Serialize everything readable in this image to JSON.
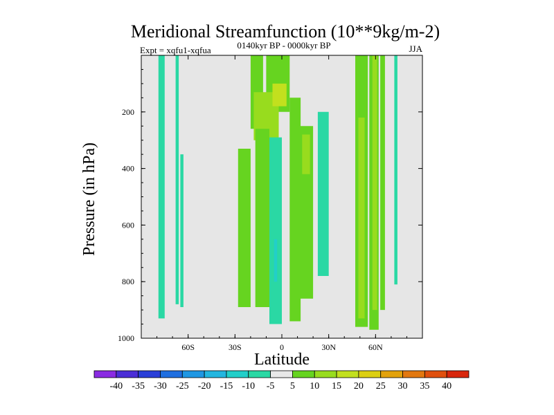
{
  "chart_data": {
    "type": "heatmap",
    "title": "Meridional Streamfunction (10**9kg/m-2)",
    "left_string": "Expt = xqfu1-xqfua",
    "center_string": "0140kyr BP - 0000kyr BP",
    "right_string": "JJA",
    "xlabel": "Latitude",
    "ylabel": "Pressure (in hPa)",
    "xlim": [
      -90,
      90
    ],
    "ylim": [
      1000,
      0
    ],
    "x_ticks": [
      {
        "value": -60,
        "label": "60S"
      },
      {
        "value": -30,
        "label": "30S"
      },
      {
        "value": 0,
        "label": "0"
      },
      {
        "value": 30,
        "label": "30N"
      },
      {
        "value": 60,
        "label": "60N"
      }
    ],
    "y_ticks": [
      {
        "value": 200,
        "label": "200"
      },
      {
        "value": 400,
        "label": "400"
      },
      {
        "value": 600,
        "label": "600"
      },
      {
        "value": 800,
        "label": "800"
      },
      {
        "value": 1000,
        "label": "1000"
      }
    ],
    "missing_color": "#e6e6e6",
    "colorbar": {
      "levels": [
        -40,
        -35,
        -30,
        -25,
        -20,
        -15,
        -10,
        -5,
        5,
        10,
        15,
        20,
        25,
        30,
        35,
        40
      ],
      "labels": [
        "-40",
        "-35",
        "-30",
        "-25",
        "-20",
        "-15",
        "-10",
        "-5",
        "5",
        "10",
        "15",
        "20",
        "25",
        "30",
        "35",
        "40"
      ],
      "colors": [
        "#8a2be2",
        "#4b2ed6",
        "#2a3fd8",
        "#1f6fe0",
        "#1f97e3",
        "#23b6e0",
        "#22cfc9",
        "#2ad8a4",
        "#e8e8e8",
        "#66d420",
        "#98dc1e",
        "#c2e01e",
        "#dccf12",
        "#e2a20c",
        "#e27810",
        "#e0500e",
        "#d8260c"
      ]
    },
    "regions": [
      {
        "x": [
          -79,
          -75,
          -75,
          -79
        ],
        "y": [
          0,
          0,
          930,
          930
        ],
        "value": -7
      },
      {
        "x": [
          -68,
          -66,
          -66,
          -68
        ],
        "y": [
          0,
          0,
          880,
          880
        ],
        "value": -7
      },
      {
        "x": [
          -65,
          -63,
          -63,
          -65
        ],
        "y": [
          350,
          350,
          890,
          890
        ],
        "value": -7
      },
      {
        "x": [
          -20,
          -12,
          -12,
          -20
        ],
        "y": [
          0,
          0,
          260,
          260
        ],
        "value": 7
      },
      {
        "x": [
          -10,
          5,
          5,
          -10
        ],
        "y": [
          0,
          0,
          200,
          200
        ],
        "value": 7
      },
      {
        "x": [
          -18,
          -2,
          -2,
          -18
        ],
        "y": [
          130,
          130,
          300,
          300
        ],
        "value": 12
      },
      {
        "x": [
          -6,
          3,
          3,
          -6
        ],
        "y": [
          100,
          100,
          180,
          180
        ],
        "value": 17
      },
      {
        "x": [
          -28,
          -20,
          -20,
          -28
        ],
        "y": [
          330,
          330,
          890,
          890
        ],
        "value": 7
      },
      {
        "x": [
          -17,
          -8,
          -8,
          -17
        ],
        "y": [
          260,
          260,
          890,
          890
        ],
        "value": 7
      },
      {
        "x": [
          -8,
          0,
          0,
          -8
        ],
        "y": [
          290,
          290,
          950,
          950
        ],
        "value": -7
      },
      {
        "x": [
          -5,
          -3,
          -3,
          -5
        ],
        "y": [
          650,
          650,
          800,
          800
        ],
        "value": -12
      },
      {
        "x": [
          5,
          12,
          12,
          5
        ],
        "y": [
          150,
          150,
          940,
          940
        ],
        "value": 7
      },
      {
        "x": [
          10,
          20,
          20,
          10
        ],
        "y": [
          250,
          250,
          860,
          860
        ],
        "value": 7
      },
      {
        "x": [
          13,
          18,
          18,
          13
        ],
        "y": [
          280,
          280,
          420,
          420
        ],
        "value": 12
      },
      {
        "x": [
          23,
          30,
          30,
          23
        ],
        "y": [
          200,
          200,
          780,
          780
        ],
        "value": -7
      },
      {
        "x": [
          47,
          55,
          55,
          47
        ],
        "y": [
          0,
          0,
          960,
          960
        ],
        "value": 7
      },
      {
        "x": [
          49,
          53,
          53,
          49
        ],
        "y": [
          220,
          220,
          930,
          930
        ],
        "value": 12
      },
      {
        "x": [
          56,
          62,
          62,
          56
        ],
        "y": [
          0,
          0,
          970,
          970
        ],
        "value": 7
      },
      {
        "x": [
          58,
          61,
          61,
          58
        ],
        "y": [
          0,
          0,
          900,
          900
        ],
        "value": 12
      },
      {
        "x": [
          63,
          66,
          66,
          63
        ],
        "y": [
          0,
          0,
          900,
          900
        ],
        "value": 7
      },
      {
        "x": [
          72,
          74,
          74,
          72
        ],
        "y": [
          0,
          0,
          810,
          810
        ],
        "value": -7
      }
    ]
  }
}
